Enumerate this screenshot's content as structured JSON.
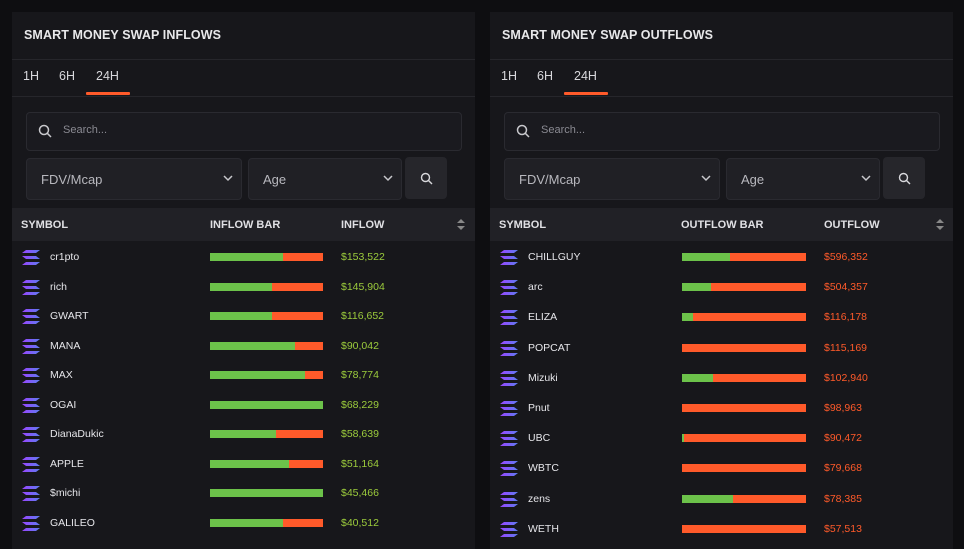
{
  "panels": [
    {
      "title": "SMART MONEY SWAP INFLOWS",
      "tabs": [
        "1H",
        "6H",
        "24H"
      ],
      "active_tab": 2,
      "search_placeholder": "Search...",
      "filters": [
        "FDV/Mcap",
        "Age"
      ],
      "columns": [
        "SYMBOL",
        "INFLOW BAR",
        "INFLOW"
      ],
      "amount_color": "#9ccc3c",
      "rows": [
        {
          "symbol": "cr1pto",
          "amount": "$153,522",
          "green_share": 65
        },
        {
          "symbol": "rich",
          "amount": "$145,904",
          "green_share": 55
        },
        {
          "symbol": "GWART",
          "amount": "$116,652",
          "green_share": 55
        },
        {
          "symbol": "MANA",
          "amount": "$90,042",
          "green_share": 75
        },
        {
          "symbol": "MAX",
          "amount": "$78,774",
          "green_share": 84
        },
        {
          "symbol": "OGAI",
          "amount": "$68,229",
          "green_share": 100
        },
        {
          "symbol": "DianaDukic",
          "amount": "$58,639",
          "green_share": 58
        },
        {
          "symbol": "APPLE",
          "amount": "$51,164",
          "green_share": 70
        },
        {
          "symbol": "$michi",
          "amount": "$45,466",
          "green_share": 100
        },
        {
          "symbol": "GALILEO",
          "amount": "$40,512",
          "green_share": 65
        }
      ]
    },
    {
      "title": "SMART MONEY SWAP OUTFLOWS",
      "tabs": [
        "1H",
        "6H",
        "24H"
      ],
      "active_tab": 2,
      "search_placeholder": "Search...",
      "filters": [
        "FDV/Mcap",
        "Age"
      ],
      "columns": [
        "SYMBOL",
        "OUTFLOW BAR",
        "OUTFLOW"
      ],
      "amount_color": "#ff5a2a",
      "rows": [
        {
          "symbol": "CHILLGUY",
          "amount": "$596,352",
          "green_share": 39
        },
        {
          "symbol": "arc",
          "amount": "$504,357",
          "green_share": 23
        },
        {
          "symbol": "ELIZA",
          "amount": "$116,178",
          "green_share": 9
        },
        {
          "symbol": "POPCAT",
          "amount": "$115,169",
          "green_share": 0
        },
        {
          "symbol": "Mizuki",
          "amount": "$102,940",
          "green_share": 25
        },
        {
          "symbol": "Pnut",
          "amount": "$98,963",
          "green_share": 0
        },
        {
          "symbol": "UBC",
          "amount": "$90,472",
          "green_share": 2
        },
        {
          "symbol": "WBTC",
          "amount": "$79,668",
          "green_share": 0
        },
        {
          "symbol": "zens",
          "amount": "$78,385",
          "green_share": 41
        },
        {
          "symbol": "WETH",
          "amount": "$57,513",
          "green_share": 0
        }
      ]
    }
  ]
}
